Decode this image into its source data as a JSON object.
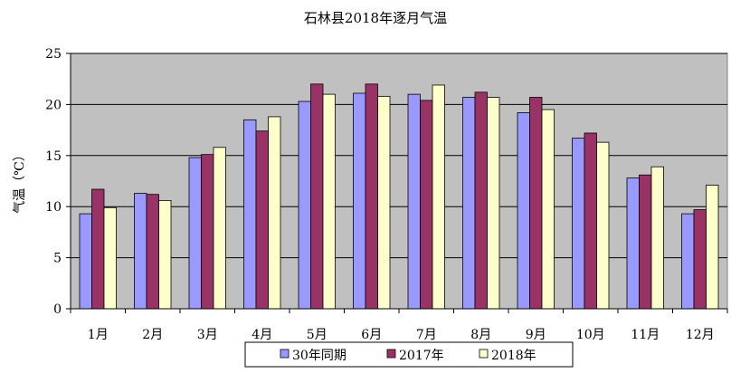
{
  "chart_data": {
    "type": "bar",
    "title": "石林县2018年逐月气温",
    "ylabel": "气温（℃）",
    "xlabel": "",
    "ylim": [
      0,
      25
    ],
    "yticks": [
      0,
      5,
      10,
      15,
      20,
      25
    ],
    "grid": true,
    "legend_position": "bottom",
    "plot_background": "#c0c0c0",
    "categories": [
      "1月",
      "2月",
      "3月",
      "4月",
      "5月",
      "6月",
      "7月",
      "8月",
      "9月",
      "10月",
      "11月",
      "12月"
    ],
    "series": [
      {
        "name": "30年同期",
        "color": "#9999ff",
        "values": [
          9.3,
          11.3,
          14.8,
          18.5,
          20.3,
          21.1,
          21.0,
          20.7,
          19.2,
          16.7,
          12.8,
          9.3
        ]
      },
      {
        "name": "2017年",
        "color": "#993366",
        "values": [
          11.7,
          11.2,
          15.1,
          17.4,
          22.0,
          22.0,
          20.4,
          21.2,
          20.7,
          17.2,
          13.1,
          9.7
        ]
      },
      {
        "name": "2018年",
        "color": "#ffffcc",
        "values": [
          9.9,
          10.6,
          15.8,
          18.8,
          21.0,
          20.8,
          21.9,
          20.7,
          19.5,
          16.3,
          13.9,
          12.1
        ]
      }
    ]
  }
}
